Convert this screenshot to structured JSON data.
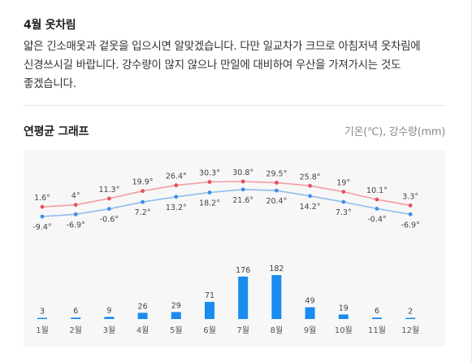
{
  "section": {
    "title": "4월 옷차림",
    "description": "얇은 긴소매옷과 겉옷을 입으시면 알맞겠습니다. 다만 일교차가 크므로 아침저녁 옷차림에 신경쓰시길 바랍니다. 강수량이 많지 않으나 만일에 대비하여 우산을 가져가시는 것도 좋겠습니다."
  },
  "graph": {
    "title": "연평균 그래프",
    "unit_label": "기온(℃), 강수량(mm)"
  },
  "colors": {
    "high_line": "#f29ca4",
    "high_dot": "#e8505b",
    "low_line": "#8fbdf0",
    "low_dot": "#3d8fe8",
    "bar": "#1a8cf0",
    "label": "#444444"
  },
  "chart_data": {
    "type": "line+bar",
    "categories": [
      "1월",
      "2월",
      "3월",
      "4월",
      "5월",
      "6월",
      "7월",
      "8월",
      "9월",
      "10월",
      "11월",
      "12월"
    ],
    "series": [
      {
        "values": [
          1.6,
          4,
          11.3,
          19.9,
          26.4,
          30.3,
          30.8,
          29.5,
          25.8,
          19,
          10.1,
          3.3
        ],
        "labels": [
          "1.6°",
          "4°",
          "11.3°",
          "19.9°",
          "26.4°",
          "30.3°",
          "30.8°",
          "29.5°",
          "25.8°",
          "19°",
          "10.1°",
          "3.3°"
        ]
      },
      {
        "values": [
          -9.4,
          -6.9,
          -0.6,
          7.2,
          13.2,
          18.2,
          21.6,
          20.4,
          14.2,
          7.3,
          -0.4,
          -6.9
        ],
        "labels": [
          "-9.4°",
          "-6.9°",
          "-0.6°",
          "7.2°",
          "13.2°",
          "18.2°",
          "21.6°",
          "20.4°",
          "14.2°",
          "7.3°",
          "-0.4°",
          "-6.9°"
        ]
      },
      {
        "values": [
          3,
          6,
          9,
          26,
          29,
          71,
          176,
          182,
          49,
          19,
          6,
          2
        ],
        "labels": [
          "3",
          "6",
          "9",
          "26",
          "29",
          "71",
          "176",
          "182",
          "49",
          "19",
          "6",
          "2"
        ]
      }
    ]
  }
}
